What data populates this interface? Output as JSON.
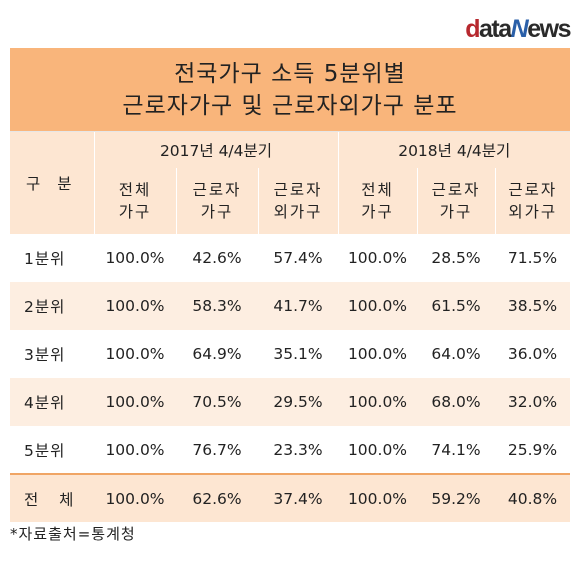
{
  "logo": {
    "d": "d",
    "a": "ata",
    "n": "N",
    "e": "ews"
  },
  "title": {
    "line1": "전국가구 소득 5분위별",
    "line2": "근로자가구 및 근로자외가구 분포"
  },
  "header": {
    "category": "구 분",
    "period_2017": "2017년 4/4분기",
    "period_2018": "2018년 4/4분기",
    "sub": [
      {
        "l1": "전체",
        "l2": "가구"
      },
      {
        "l1": "근로자",
        "l2": "가구"
      },
      {
        "l1": "근로자",
        "l2": "외가구"
      },
      {
        "l1": "전체",
        "l2": "가구"
      },
      {
        "l1": "근로자",
        "l2": "가구"
      },
      {
        "l1": "근로자",
        "l2": "외가구"
      }
    ]
  },
  "rows": [
    {
      "label": "1분위",
      "v": [
        "100.0%",
        "42.6%",
        "57.4%",
        "100.0%",
        "28.5%",
        "71.5%"
      ]
    },
    {
      "label": "2분위",
      "v": [
        "100.0%",
        "58.3%",
        "41.7%",
        "100.0%",
        "61.5%",
        "38.5%"
      ]
    },
    {
      "label": "3분위",
      "v": [
        "100.0%",
        "64.9%",
        "35.1%",
        "100.0%",
        "64.0%",
        "36.0%"
      ]
    },
    {
      "label": "4분위",
      "v": [
        "100.0%",
        "70.5%",
        "29.5%",
        "100.0%",
        "68.0%",
        "32.0%"
      ]
    },
    {
      "label": "5분위",
      "v": [
        "100.0%",
        "76.7%",
        "23.3%",
        "100.0%",
        "74.1%",
        "25.9%"
      ]
    },
    {
      "label": "전 체",
      "v": [
        "100.0%",
        "62.6%",
        "37.4%",
        "100.0%",
        "59.2%",
        "40.8%"
      ]
    }
  ],
  "source": "*자료출처=통계청",
  "colors": {
    "title_bg": "#f9b57b",
    "header_bg": "#fde6d2",
    "alt_row": "#fdeee1",
    "logo_red": "#b7282e",
    "logo_blue": "#2a5fa8"
  }
}
